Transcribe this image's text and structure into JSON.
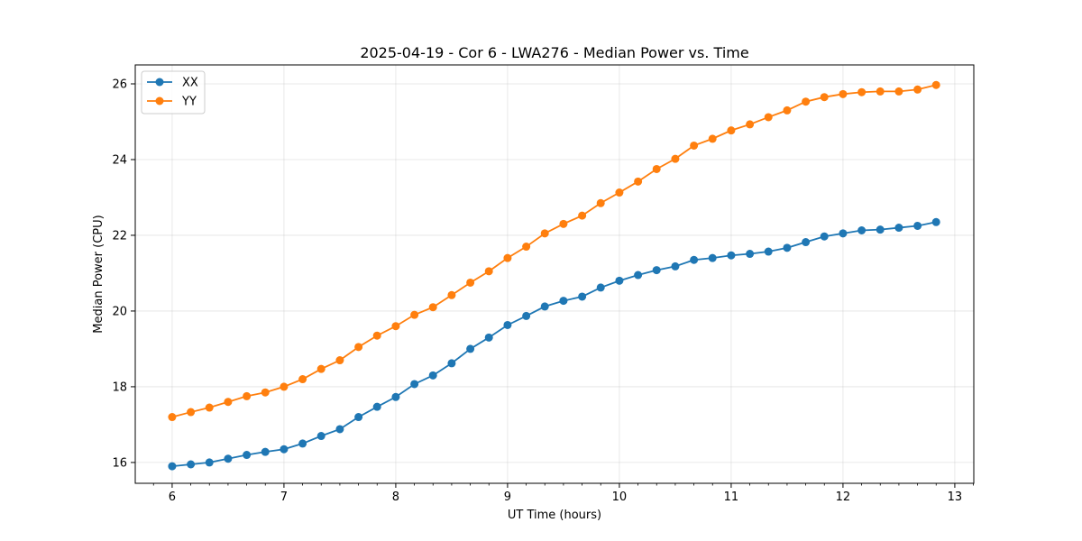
{
  "chart_data": {
    "type": "line",
    "title": "2025-04-19 - Cor 6 - LWA276 - Median Power vs. Time",
    "xlabel": "UT Time (hours)",
    "ylabel": "Median Power (CPU)",
    "xlim": [
      5.67,
      13.17
    ],
    "ylim": [
      15.45,
      26.5
    ],
    "xticks": [
      6,
      7,
      8,
      9,
      10,
      11,
      12,
      13
    ],
    "xtick_labels": [
      "6",
      "7",
      "8",
      "9",
      "10",
      "11",
      "12",
      "13"
    ],
    "yticks": [
      16,
      18,
      20,
      22,
      24,
      26
    ],
    "ytick_labels": [
      "16",
      "18",
      "20",
      "22",
      "24",
      "26"
    ],
    "grid": true,
    "legend_position": "top-left",
    "x": [
      6.0,
      6.167,
      6.333,
      6.5,
      6.667,
      6.833,
      7.0,
      7.167,
      7.333,
      7.5,
      7.667,
      7.833,
      8.0,
      8.167,
      8.333,
      8.5,
      8.667,
      8.833,
      9.0,
      9.167,
      9.333,
      9.5,
      9.667,
      9.833,
      10.0,
      10.167,
      10.333,
      10.5,
      10.667,
      10.833,
      11.0,
      11.167,
      11.333,
      11.5,
      11.667,
      11.833,
      12.0,
      12.167,
      12.333,
      12.5,
      12.667,
      12.833
    ],
    "series": [
      {
        "name": "XX",
        "color": "#1f77b4",
        "values": [
          15.9,
          15.95,
          16.0,
          16.1,
          16.2,
          16.28,
          16.35,
          16.5,
          16.7,
          16.88,
          17.2,
          17.47,
          17.73,
          18.07,
          18.3,
          18.62,
          19.0,
          19.3,
          19.63,
          19.87,
          20.12,
          20.27,
          20.38,
          20.62,
          20.8,
          20.95,
          21.08,
          21.18,
          21.35,
          21.4,
          21.47,
          21.51,
          21.57,
          21.67,
          21.82,
          21.97,
          22.05,
          22.13,
          22.15,
          22.2,
          22.25,
          22.35
        ]
      },
      {
        "name": "YY",
        "color": "#ff7f0e",
        "values": [
          17.2,
          17.33,
          17.45,
          17.6,
          17.75,
          17.85,
          18.0,
          18.2,
          18.47,
          18.7,
          19.05,
          19.35,
          19.6,
          19.9,
          20.1,
          20.42,
          20.75,
          21.05,
          21.4,
          21.7,
          22.05,
          22.3,
          22.52,
          22.85,
          23.13,
          23.42,
          23.75,
          24.02,
          24.37,
          24.55,
          24.77,
          24.93,
          25.12,
          25.3,
          25.53,
          25.65,
          25.73,
          25.78,
          25.8,
          25.8,
          25.85,
          25.97
        ]
      }
    ]
  }
}
